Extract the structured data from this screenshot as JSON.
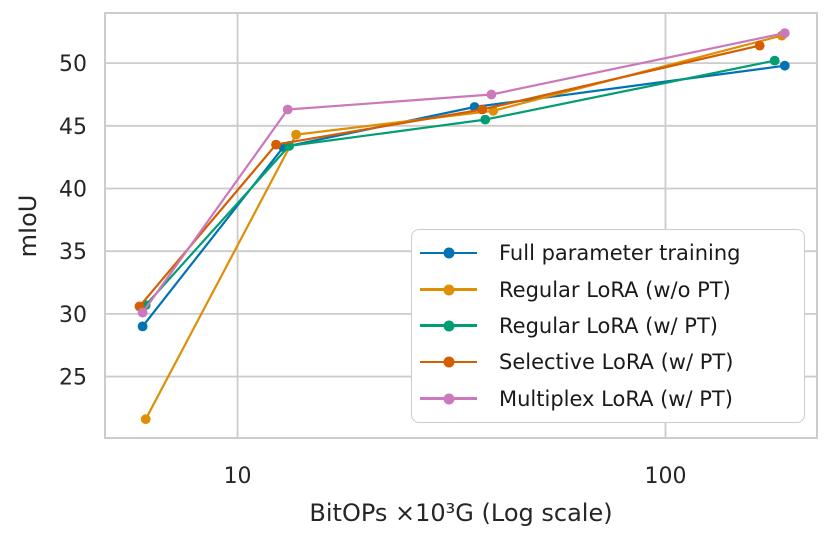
{
  "chart_data": {
    "type": "line",
    "title": "",
    "xlabel": "BitOPs ×10³G (Log scale)",
    "ylabel": "mIoU",
    "x_scale": "log",
    "xlim": [
      4.9,
      226
    ],
    "ylim": [
      20.1,
      54
    ],
    "x_ticks": [
      10,
      100
    ],
    "y_ticks": [
      25,
      30,
      35,
      40,
      45,
      50
    ],
    "grid": true,
    "grid_color": "#cccccc",
    "text_color": "#262626",
    "legend_position": "lower right",
    "series": [
      {
        "name": "Full parameter training",
        "color": "#0173B2",
        "points": [
          [
            6.0,
            29.0
          ],
          [
            12.8,
            43.3
          ],
          [
            35.8,
            46.5
          ],
          [
            190,
            49.8
          ]
        ]
      },
      {
        "name": "Regular LoRA (w/o PT)",
        "color": "#DE8F05",
        "points": [
          [
            6.1,
            21.6
          ],
          [
            13.7,
            44.3
          ],
          [
            39.6,
            46.2
          ],
          [
            187,
            52.2
          ]
        ]
      },
      {
        "name": "Regular LoRA (w/ PT)",
        "color": "#029E73",
        "points": [
          [
            6.1,
            30.7
          ],
          [
            13.2,
            43.4
          ],
          [
            37.9,
            45.5
          ],
          [
            180,
            50.2
          ]
        ]
      },
      {
        "name": "Selective LoRA (w/ PT)",
        "color": "#D55E00",
        "points": [
          [
            5.9,
            30.6
          ],
          [
            12.3,
            43.5
          ],
          [
            37.3,
            46.3
          ],
          [
            166,
            51.4
          ]
        ]
      },
      {
        "name": "Multiplex LoRA (w/ PT)",
        "color": "#CC78BC",
        "points": [
          [
            6.0,
            30.1
          ],
          [
            13.1,
            46.3
          ],
          [
            39.2,
            47.5
          ],
          [
            190,
            52.4
          ]
        ]
      }
    ]
  }
}
